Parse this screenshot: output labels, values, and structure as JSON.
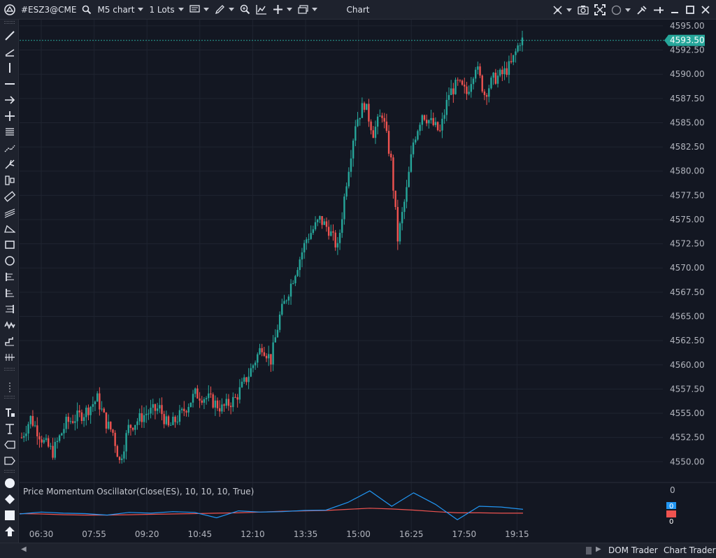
{
  "toolbar": {
    "symbol": "#ESZ3@CME",
    "chart_type": "M5 chart",
    "lots": "1 Lots",
    "window_title": "Chart"
  },
  "price_axis": {
    "current_price": "4593.50",
    "ticks": [
      "4595.00",
      "4592.50",
      "4590.00",
      "4587.50",
      "4585.00",
      "4582.50",
      "4580.00",
      "4577.50",
      "4575.00",
      "4572.50",
      "4570.00",
      "4567.50",
      "4565.00",
      "4562.50",
      "4560.00",
      "4557.50",
      "4555.00",
      "4552.50",
      "4550.00"
    ]
  },
  "time_axis": {
    "ticks": [
      "06:30",
      "07:55",
      "09:20",
      "10:45",
      "12:10",
      "13:35",
      "15:00",
      "16:25",
      "17:50",
      "19:15"
    ]
  },
  "indicator": {
    "title": "Price Momentum Oscillator(Close(ES), 10, 10, 10, True)",
    "axis_label": "0",
    "badge_top": "0",
    "badge_bottom": "0"
  },
  "bottom_tabs": [
    "DOM Trader",
    "Chart Trader"
  ],
  "colors": {
    "background": "#131722",
    "panel": "#1e222d",
    "bull": "#26a69a",
    "bear": "#ef5350",
    "pmo_line": "#2196f3",
    "signal_line": "#ef5350",
    "price_badge": "#26a69a"
  },
  "icons": [
    "logo-icon",
    "search-icon",
    "caret-down-icon",
    "list-icon",
    "pencil-icon",
    "zoom-icon",
    "indicator-icon",
    "crosshair-icon",
    "window-icon",
    "sync-icon",
    "camera-icon",
    "fullscreen-icon",
    "circle-icon",
    "tools-icon",
    "pin-icon",
    "minimize-icon",
    "maximize-icon",
    "close-icon"
  ],
  "chart_data": {
    "type": "candlestick",
    "symbol": "#ESZ3@CME",
    "timeframe": "M5",
    "x": [
      "06:30",
      "07:55",
      "09:20",
      "10:45",
      "12:10",
      "13:35",
      "15:00",
      "16:25",
      "17:50",
      "19:15"
    ],
    "ylim": [
      4548.0,
      4595.5
    ],
    "keypoints": [
      {
        "t": 0,
        "price": 4552.5
      },
      {
        "t": 4,
        "price": 4554.5
      },
      {
        "t": 10,
        "price": 4552.0
      },
      {
        "t": 14,
        "price": 4551.0
      },
      {
        "t": 20,
        "price": 4554.0
      },
      {
        "t": 28,
        "price": 4555.0
      },
      {
        "t": 34,
        "price": 4556.5
      },
      {
        "t": 38,
        "price": 4554.0
      },
      {
        "t": 41,
        "price": 4553.0
      },
      {
        "t": 44,
        "price": 4550.0
      },
      {
        "t": 48,
        "price": 4553.5
      },
      {
        "t": 56,
        "price": 4555.0
      },
      {
        "t": 62,
        "price": 4555.5
      },
      {
        "t": 66,
        "price": 4553.5
      },
      {
        "t": 72,
        "price": 4555.0
      },
      {
        "t": 78,
        "price": 4557.0
      },
      {
        "t": 84,
        "price": 4556.5
      },
      {
        "t": 90,
        "price": 4555.5
      },
      {
        "t": 96,
        "price": 4556.5
      },
      {
        "t": 102,
        "price": 4559.0
      },
      {
        "t": 108,
        "price": 4562.0
      },
      {
        "t": 112,
        "price": 4560.5
      },
      {
        "t": 116,
        "price": 4565.0
      },
      {
        "t": 122,
        "price": 4569.0
      },
      {
        "t": 128,
        "price": 4573.0
      },
      {
        "t": 134,
        "price": 4575.0
      },
      {
        "t": 138,
        "price": 4574.0
      },
      {
        "t": 142,
        "price": 4572.0
      },
      {
        "t": 146,
        "price": 4579.0
      },
      {
        "t": 150,
        "price": 4585.0
      },
      {
        "t": 154,
        "price": 4587.0
      },
      {
        "t": 158,
        "price": 4584.0
      },
      {
        "t": 162,
        "price": 4586.0
      },
      {
        "t": 166,
        "price": 4581.0
      },
      {
        "t": 169,
        "price": 4573.0
      },
      {
        "t": 173,
        "price": 4578.0
      },
      {
        "t": 176,
        "price": 4583.0
      },
      {
        "t": 180,
        "price": 4586.0
      },
      {
        "t": 184,
        "price": 4585.0
      },
      {
        "t": 188,
        "price": 4584.0
      },
      {
        "t": 192,
        "price": 4588.0
      },
      {
        "t": 196,
        "price": 4589.0
      },
      {
        "t": 200,
        "price": 4588.0
      },
      {
        "t": 204,
        "price": 4591.0
      },
      {
        "t": 208,
        "price": 4588.0
      },
      {
        "t": 212,
        "price": 4589.5
      },
      {
        "t": 216,
        "price": 4590.0
      },
      {
        "t": 220,
        "price": 4591.0
      },
      {
        "t": 224,
        "price": 4593.5
      }
    ],
    "oscillator": {
      "name": "Price Momentum Oscillator(Close(ES), 10, 10, 10, True)",
      "pmo": [
        0,
        0.5,
        0.2,
        0.1,
        -0.3,
        0.4,
        0.2,
        0.6,
        0.4,
        -1.0,
        0.8,
        0.5,
        0.6,
        0.9,
        1.0,
        3.0,
        6.0,
        2.0,
        5.5,
        2.5,
        -1.5,
        2.0,
        1.8,
        1.2
      ],
      "signal": [
        0.1,
        0.0,
        -0.2,
        -0.3,
        -0.3,
        -0.2,
        -0.1,
        0.0,
        0.1,
        0.2,
        0.3,
        0.5,
        0.7,
        0.8,
        0.9,
        1.2,
        1.5,
        1.3,
        1.0,
        0.6,
        0.3,
        0.3,
        0.2,
        0.2
      ]
    }
  }
}
